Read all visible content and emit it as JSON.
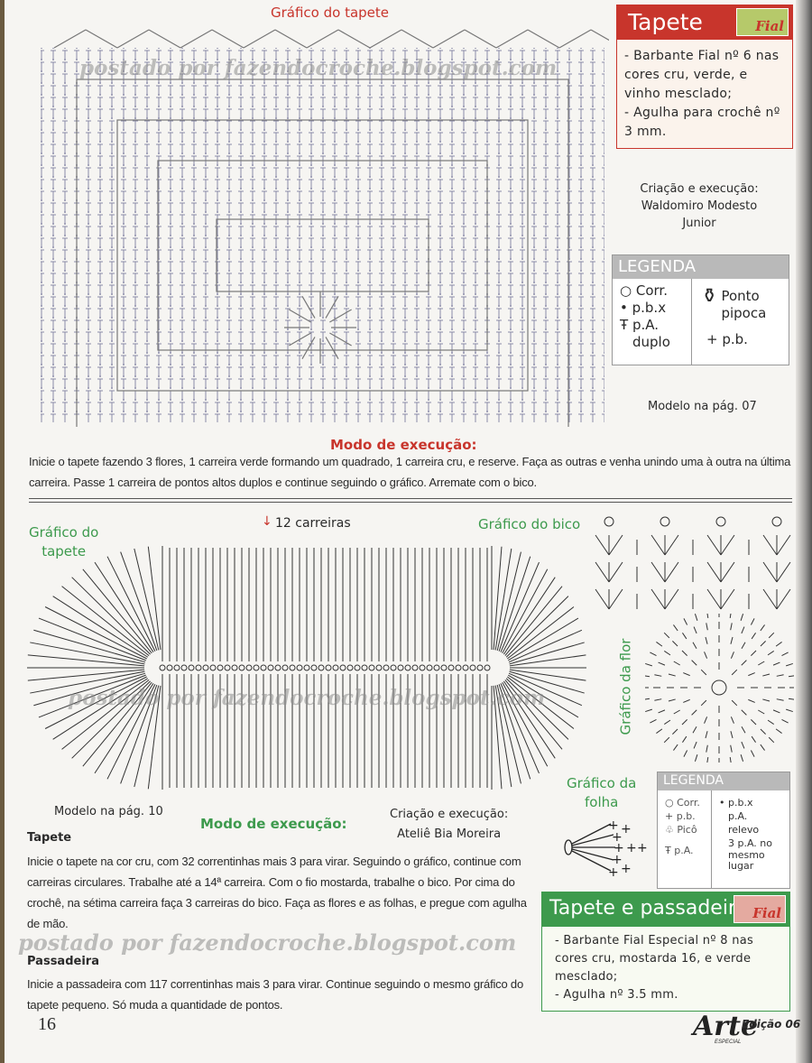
{
  "top": {
    "chart_title": "Gráfico do tapete",
    "materials": {
      "title": "Tapete",
      "brand": "Fial",
      "lines": [
        "- Barbante Fial nº 6 nas",
        "cores cru, verde, e",
        "vinho mesclado;",
        "- Agulha para crochê nº",
        "3 mm."
      ]
    },
    "credit": [
      "Criação e execução:",
      "Waldomiro Modesto",
      "Junior"
    ],
    "legend": {
      "title": "LEGENDA",
      "items": [
        "Corr.",
        "p.b.x",
        "p.A.",
        "duplo",
        "Ponto",
        "pipoca",
        "p.b."
      ]
    },
    "model_page": "Modelo na pág. 07",
    "method_title": "Modo de execução:",
    "method_text": "Inicie o tapete fazendo 3 flores, 1 carreira verde formando um quadrado, 1 carreira cru, e reserve. Faça as outras e venha unindo uma à outra na última carreira. Passe 1 carreira de pontos altos duplos e continue seguindo o gráfico. Arremate com o bico."
  },
  "bottom": {
    "chart_title": [
      "Gráfico do",
      "tapete"
    ],
    "rows_label": "12 carreiras",
    "edge_title": "Gráfico do bico",
    "flower_title": "Gráfico da flor",
    "leaf_title": [
      "Gráfico da",
      "folha"
    ],
    "legend": {
      "title": "LEGENDA",
      "items": [
        "Corr.",
        "p.b.",
        "Picô",
        "p.A.",
        "p.b.x",
        "p.A.",
        "relevo",
        "3 p.A. no",
        "mesmo",
        "lugar"
      ]
    },
    "model_page": "Modelo na pág. 10",
    "method_title": "Modo de execução:",
    "credit": [
      "Criação e execução:",
      "Ateliê Bia Moreira"
    ],
    "tapete_heading": "Tapete",
    "tapete_text": "Inicie o tapete na cor cru, com 32 correntinhas mais 3 para virar. Seguindo o gráfico, continue com carreiras circulares. Trabalhe até a 14ª carreira. Com o fio mostarda, trabalhe o bico. Por cima do crochê, na sétima carreira faça 3 carreiras do bico. Faça  as flores e as folhas, e pregue com agulha de mão.",
    "passadeira_heading": "Passadeira",
    "passadeira_text": "Inicie a passadeira com 117 correntinhas mais 3 para virar. Continue seguindo o mesmo gráfico do tapete pequeno. Só muda a quantidade de pontos.",
    "materials": {
      "title": "Tapete e passadeira",
      "brand": "Fial",
      "lines": [
        "- Barbante Fial Especial nº 8 nas",
        "cores cru, mostarda 16, e verde",
        "mesclado;",
        "- Agulha nº 3.5 mm."
      ]
    }
  },
  "watermark": "postado por fazendocroche.blogspot.com",
  "footer": {
    "page_number": "16",
    "magazine": "Arte",
    "magazine_sub": "ESPECIAL",
    "edition": "Edição 06"
  },
  "colors": {
    "red": "#c8352c",
    "green": "#3d9a4d",
    "legend_gray": "#b9b9b9"
  }
}
